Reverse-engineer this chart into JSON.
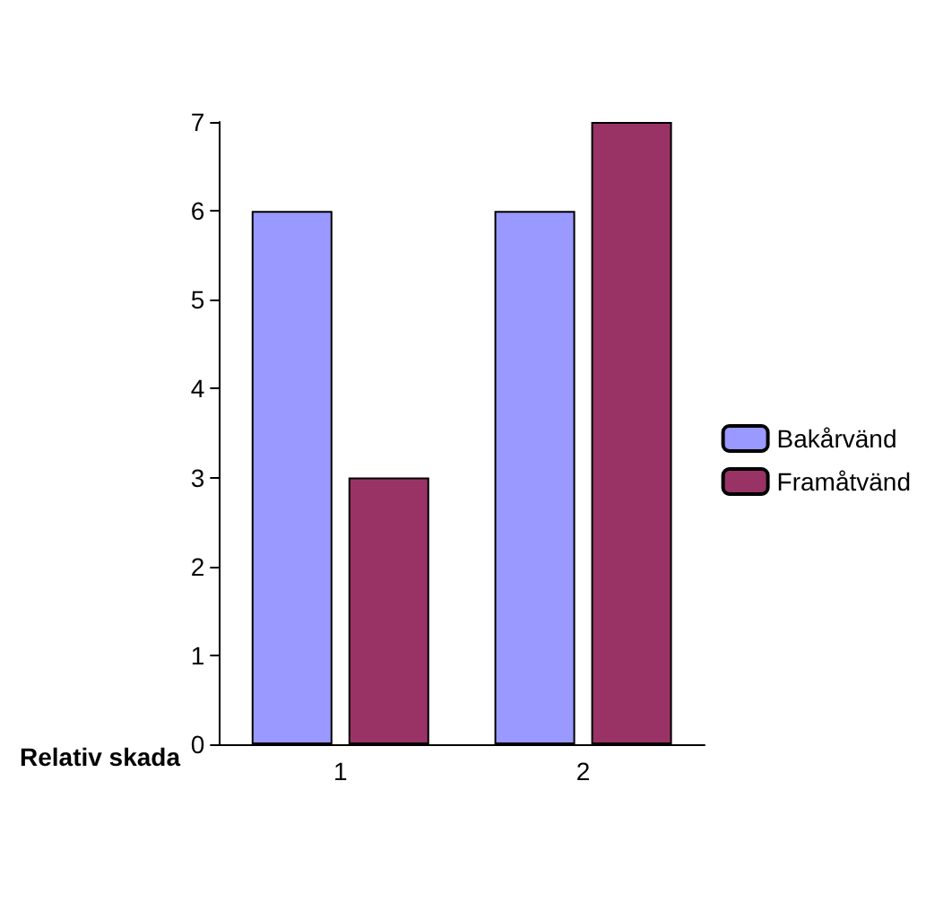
{
  "chart_data": {
    "type": "bar",
    "xlabel": "Relativ skada",
    "categories": [
      "1",
      "2"
    ],
    "series": [
      {
        "name": "Bakårvänd",
        "color": "#9999ff",
        "values": [
          6,
          6
        ]
      },
      {
        "name": "Framåtvänd",
        "color": "#993366",
        "values": [
          3,
          7
        ]
      }
    ],
    "ylim": [
      0,
      7
    ],
    "yticks": [
      0,
      1,
      2,
      3,
      4,
      5,
      6,
      7
    ],
    "grid": false,
    "legend": "right"
  }
}
